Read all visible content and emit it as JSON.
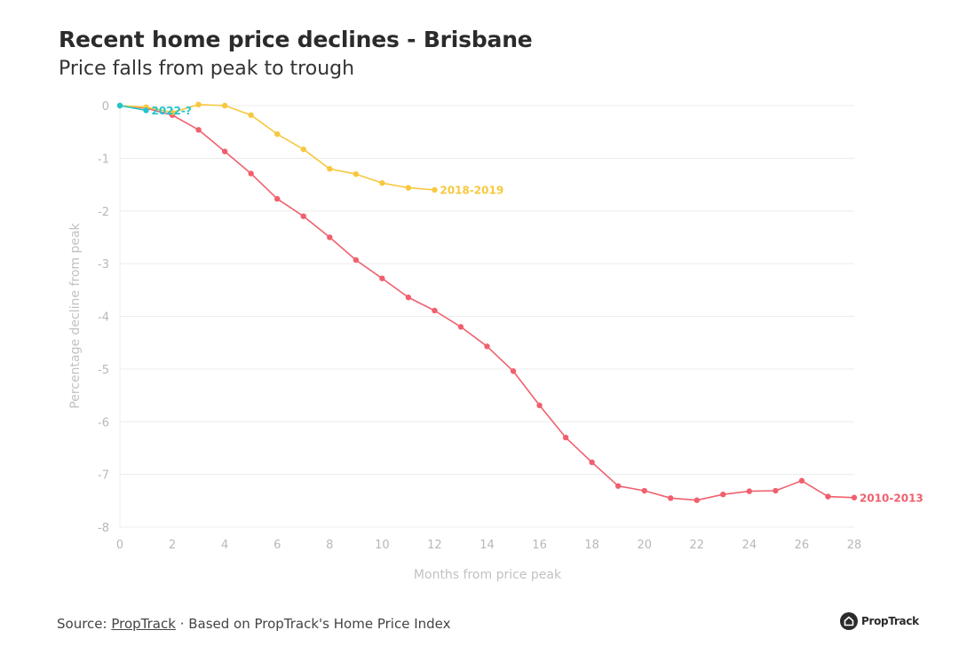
{
  "title": "Recent home price declines - Brisbane",
  "subtitle": "Price falls from peak to trough",
  "chart_data": {
    "type": "line",
    "title": "Recent home price declines - Brisbane",
    "subtitle": "Price falls from peak to trough",
    "xlabel": "Months from price peak",
    "ylabel": "Percentage decline from peak",
    "xlim": [
      0,
      28
    ],
    "ylim": [
      -8,
      0
    ],
    "xticks": [
      0,
      2,
      4,
      6,
      8,
      10,
      12,
      14,
      16,
      18,
      20,
      22,
      24,
      26,
      28
    ],
    "yticks": [
      0,
      -1,
      -2,
      -3,
      -4,
      -5,
      -6,
      -7,
      -8
    ],
    "grid": true,
    "series": [
      {
        "name": "2010-2013",
        "label": "2010-2013",
        "color": "#f0606e",
        "x": [
          0,
          1,
          2,
          3,
          4,
          5,
          6,
          7,
          8,
          9,
          10,
          11,
          12,
          13,
          14,
          15,
          16,
          17,
          18,
          19,
          20,
          21,
          22,
          23,
          24,
          25,
          26,
          27,
          28
        ],
        "values": [
          0,
          -0.05,
          -0.18,
          -0.46,
          -0.87,
          -1.29,
          -1.77,
          -2.1,
          -2.5,
          -2.93,
          -3.28,
          -3.64,
          -3.89,
          -4.2,
          -4.57,
          -5.04,
          -5.69,
          -6.3,
          -6.77,
          -7.22,
          -7.31,
          -7.45,
          -7.49,
          -7.38,
          -7.32,
          -7.31,
          -7.12,
          -7.42,
          -7.44
        ]
      },
      {
        "name": "2018-2019",
        "label": "2018-2019",
        "color": "#f7c83e",
        "x": [
          0,
          1,
          2,
          3,
          4,
          5,
          6,
          7,
          8,
          9,
          10,
          11,
          12
        ],
        "values": [
          0,
          -0.03,
          -0.13,
          0.02,
          0.0,
          -0.18,
          -0.54,
          -0.83,
          -1.2,
          -1.3,
          -1.47,
          -1.56,
          -1.6
        ]
      },
      {
        "name": "2022-?",
        "label": "2022-?",
        "color": "#1fc6cf",
        "x": [
          0,
          1
        ],
        "values": [
          0,
          -0.09
        ]
      }
    ]
  },
  "footer": {
    "source_prefix": "Source: ",
    "source_link": "PropTrack",
    "source_suffix": " · Based on PropTrack's Home Price Index"
  },
  "logo": {
    "text": "PropTrack",
    "icon": "house-icon"
  }
}
